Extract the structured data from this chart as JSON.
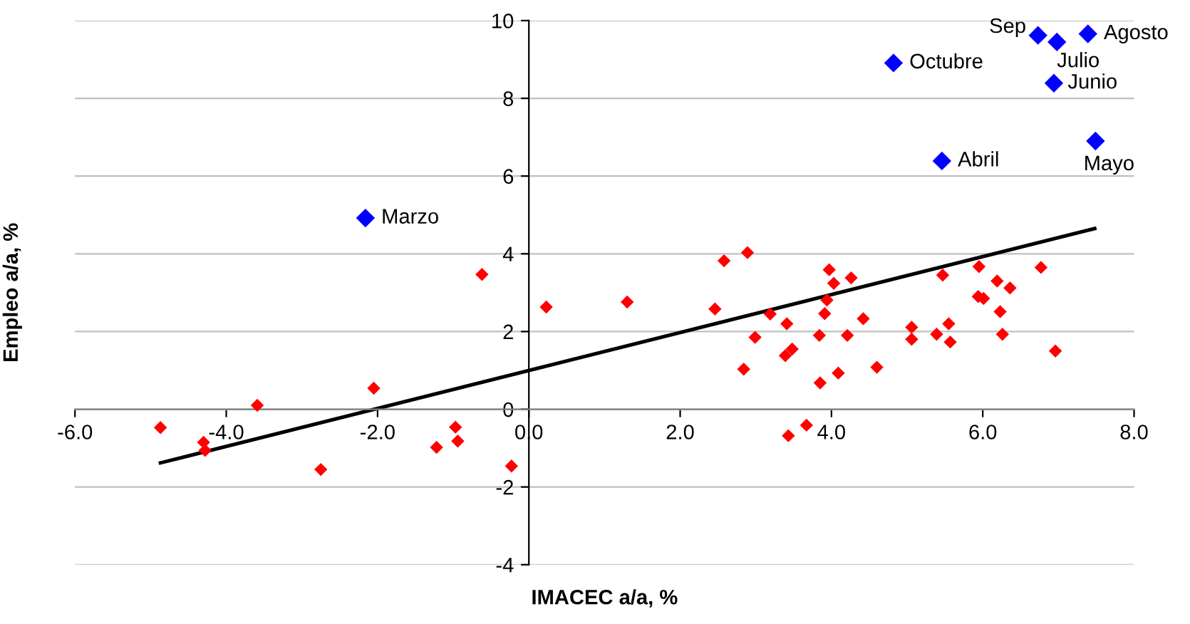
{
  "chart_data": {
    "type": "scatter",
    "xlabel": "IMACEC a/a, %",
    "ylabel": "Empleo a/a, %",
    "xlim": [
      -6,
      8
    ],
    "ylim": [
      -4,
      10
    ],
    "xticks": [
      {
        "value": -6,
        "label": "-6.0"
      },
      {
        "value": -4,
        "label": "-4.0"
      },
      {
        "value": -2,
        "label": "-2.0"
      },
      {
        "value": 0,
        "label": "0.0"
      },
      {
        "value": 2,
        "label": "2.0"
      },
      {
        "value": 4,
        "label": "4.0"
      },
      {
        "value": 6,
        "label": "6.0"
      },
      {
        "value": 8,
        "label": "8.0"
      }
    ],
    "yticks": [
      -4,
      -2,
      0,
      2,
      4,
      6,
      8,
      10
    ],
    "grid": "y",
    "legend": false,
    "marker": "diamond",
    "series": [
      {
        "color": "#ff0000",
        "x": [
          -4.87,
          -4.3,
          -4.28,
          -3.59,
          -2.75,
          -2.05,
          -1.22,
          -0.97,
          -0.94,
          -0.62,
          -0.23,
          0.23,
          1.3,
          2.46,
          2.58,
          2.89,
          2.84,
          2.99,
          3.19,
          3.41,
          3.39,
          3.48,
          3.43,
          3.67,
          3.85,
          3.84,
          3.91,
          3.94,
          3.97,
          4.03,
          4.09,
          4.21,
          4.26,
          4.42,
          4.6,
          5.06,
          5.06,
          5.39,
          5.47,
          5.55,
          5.57,
          5.95,
          5.94,
          6.01,
          6.19,
          6.23,
          6.26,
          6.36,
          6.77,
          6.96
        ],
        "values": [
          -0.47,
          -0.85,
          -1.06,
          0.1,
          -1.55,
          0.54,
          -0.98,
          -0.46,
          -0.82,
          3.47,
          -1.46,
          2.63,
          2.76,
          2.58,
          3.82,
          4.03,
          1.03,
          1.85,
          2.45,
          2.2,
          1.38,
          1.55,
          -0.68,
          -0.41,
          0.68,
          1.9,
          2.46,
          2.81,
          3.59,
          3.24,
          0.93,
          1.9,
          3.38,
          2.33,
          1.08,
          2.11,
          1.8,
          1.93,
          3.45,
          2.2,
          1.73,
          3.67,
          2.9,
          2.85,
          3.3,
          2.51,
          1.93,
          3.12,
          3.65,
          1.5
        ]
      },
      {
        "color": "#0000ff",
        "x": [
          -2.16,
          4.82,
          5.46,
          6.73,
          6.98,
          7.39,
          6.94,
          7.49
        ],
        "values": [
          4.92,
          8.91,
          6.39,
          9.62,
          9.45,
          9.66,
          8.39,
          6.9
        ]
      },
      {
        "type": "line",
        "color": "#000000",
        "marker": "none",
        "line_style": "solid",
        "x": [
          -4.87,
          7.48
        ],
        "values": [
          -1.38,
          4.65
        ]
      }
    ],
    "annotations": [
      {
        "text": "Marzo",
        "x": -2.16,
        "y": 4.92
      },
      {
        "text": "Octubre",
        "x": 4.82,
        "y": 8.91
      },
      {
        "text": "Abril",
        "x": 5.46,
        "y": 6.39
      },
      {
        "text": "Sep",
        "x": 6.73,
        "y": 9.62
      },
      {
        "text": "Julio",
        "x": 6.98,
        "y": 9.45
      },
      {
        "text": "Agosto",
        "x": 7.39,
        "y": 9.66
      },
      {
        "text": "Junio",
        "x": 6.94,
        "y": 8.39
      },
      {
        "text": "Mayo",
        "x": 7.49,
        "y": 6.9
      }
    ]
  }
}
